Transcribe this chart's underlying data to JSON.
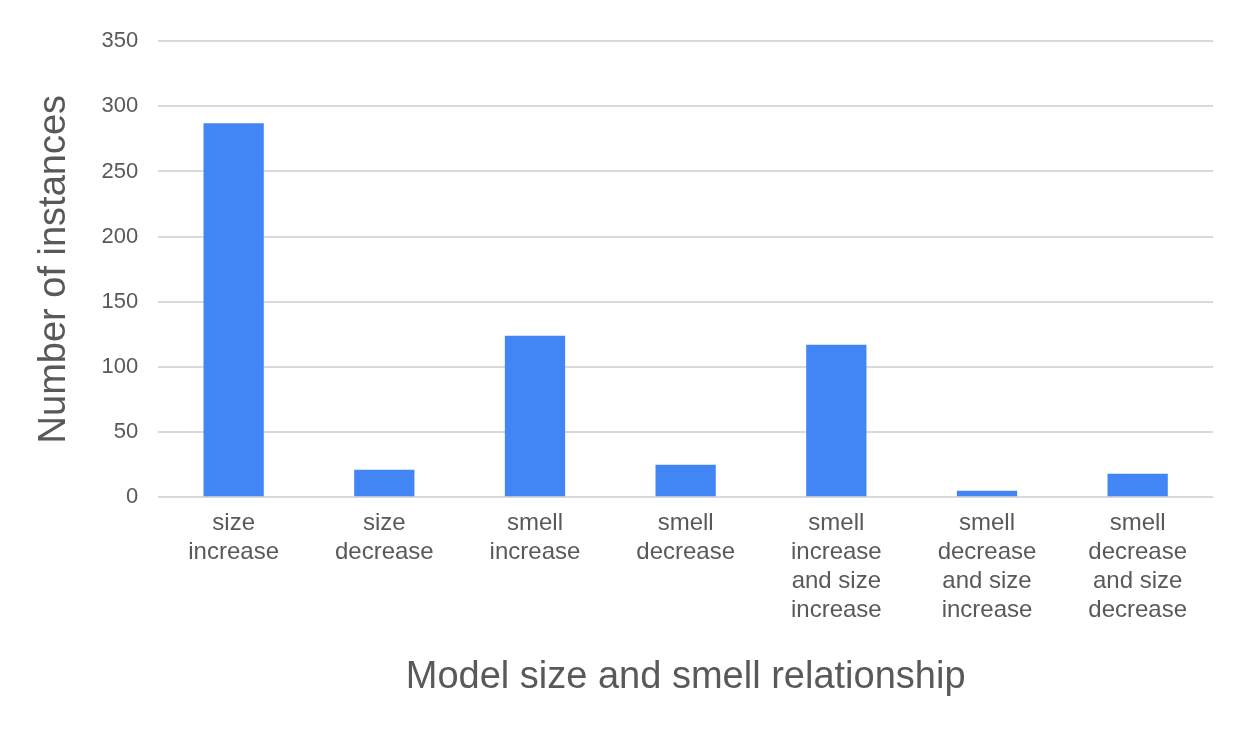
{
  "chart_data": {
    "type": "bar",
    "xlabel": "Model size and smell relationship",
    "ylabel": "Number of instances",
    "categories": [
      "size increase",
      "size decrease",
      "smell increase",
      "smell decrease",
      "smell increase and size increase",
      "smell decrease and size increase",
      "smell decrease and size decrease"
    ],
    "values": [
      287,
      21,
      124,
      25,
      117,
      5,
      18
    ],
    "color": "#4285f4",
    "ylim": [
      0,
      350
    ],
    "yticks": [
      0,
      50,
      100,
      150,
      200,
      250,
      300,
      350
    ],
    "grid": "y",
    "legend": false
  }
}
